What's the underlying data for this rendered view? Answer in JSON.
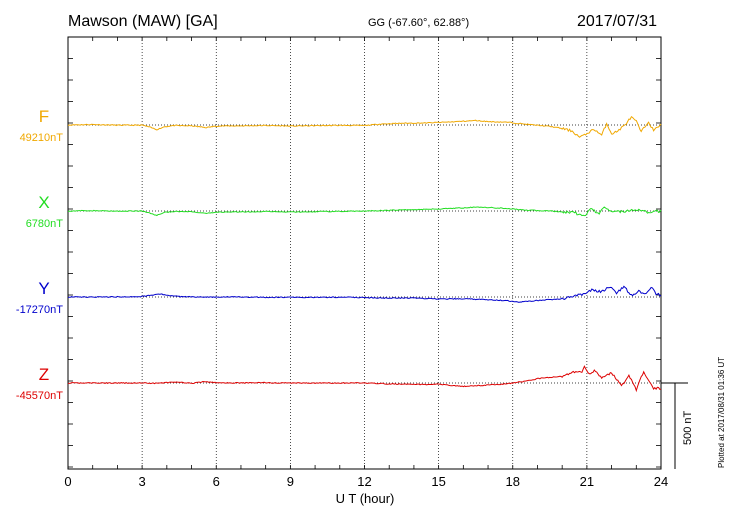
{
  "header": {
    "station": "Mawson (MAW)  [GA]",
    "coords": "GG (-67.60°,  62.88°)",
    "date": "2017/07/31"
  },
  "footer_note": "Plotted at 2017/08/31 01:36 UT",
  "chart_data": {
    "type": "line",
    "title": "Mawson (MAW)  [GA]",
    "xlabel": "U T (hour)",
    "xlim": [
      0,
      24
    ],
    "xticks": [
      "0",
      "3",
      "6",
      "9",
      "12",
      "15",
      "18",
      "21",
      "24"
    ],
    "scale_bar": "500 nT",
    "scale_bar_nT": 500,
    "grid": "dotted vertical lines every 3 hours",
    "series": [
      {
        "name": "F",
        "baseline_label": "49210nT",
        "baseline_nT": 49210,
        "color": "#f0a800",
        "x": [
          0,
          1,
          2,
          3,
          3.3,
          3.6,
          3.9,
          4.3,
          5,
          5.6,
          6,
          7,
          8,
          9,
          10,
          11,
          12,
          12.7,
          13.5,
          14.5,
          15.5,
          16.5,
          17,
          17.8,
          18.5,
          19.5,
          20,
          20.4,
          20.7,
          20.9,
          21.1,
          21.3,
          21.6,
          21.8,
          22,
          22.2,
          22.5,
          22.8,
          23,
          23.2,
          23.5,
          23.7,
          24
        ],
        "y": [
          0,
          3,
          -1,
          -1,
          -12,
          -27,
          -10,
          -3,
          -5,
          -15,
          -6,
          -5,
          -3,
          -6,
          -4,
          -2,
          -3,
          6,
          10,
          12,
          18,
          26,
          20,
          16,
          5,
          -8,
          -20,
          -35,
          -70,
          -60,
          -40,
          -25,
          -60,
          10,
          -50,
          -40,
          -5,
          45,
          20,
          -40,
          20,
          -35,
          8
        ]
      },
      {
        "name": "X",
        "baseline_label": "6780nT",
        "baseline_nT": 6780,
        "color": "#22dd22",
        "x": [
          0,
          1,
          2,
          3,
          3.3,
          3.6,
          3.9,
          4.3,
          5,
          5.6,
          6,
          7,
          8,
          9,
          10,
          11,
          12,
          13,
          14,
          15,
          16,
          16.5,
          17,
          17.8,
          18.5,
          19.5,
          20.5,
          20.9,
          21.2,
          21.5,
          21.7,
          22,
          22.5,
          23,
          23.5,
          24
        ],
        "y": [
          0,
          2,
          -1,
          0,
          -12,
          -25,
          -8,
          -3,
          -5,
          -15,
          -6,
          -5,
          -3,
          -6,
          -4,
          -2,
          0,
          4,
          8,
          12,
          18,
          22,
          20,
          15,
          5,
          0,
          -10,
          -30,
          15,
          -20,
          30,
          -5,
          -2,
          10,
          -8,
          0
        ]
      },
      {
        "name": "Y",
        "baseline_label": "-17270nT",
        "baseline_nT": -17270,
        "color": "#0000cc",
        "x": [
          0,
          1,
          2,
          3,
          3.3,
          3.7,
          4.1,
          4.6,
          5.5,
          6,
          7,
          8,
          9,
          10,
          11,
          12,
          13,
          14,
          15,
          16,
          17,
          17.8,
          18.3,
          19,
          20,
          20.5,
          20.9,
          21.2,
          21.6,
          21.9,
          22.2,
          22.5,
          22.8,
          23.1,
          23.4,
          23.6,
          23.8,
          24
        ],
        "y": [
          0,
          0,
          1,
          3,
          8,
          18,
          8,
          2,
          0,
          0,
          0,
          -2,
          -1,
          -2,
          -1,
          -4,
          -6,
          -6,
          -12,
          -10,
          -16,
          -22,
          -30,
          -20,
          -10,
          5,
          20,
          40,
          30,
          60,
          25,
          60,
          10,
          35,
          15,
          55,
          20,
          10
        ]
      },
      {
        "name": "Z",
        "baseline_label": "-45570nT",
        "baseline_nT": -45570,
        "color": "#dd0000",
        "x": [
          0,
          1,
          2,
          3,
          3.5,
          4.5,
          5,
          5.5,
          6,
          7,
          8,
          9,
          10,
          11,
          12,
          13,
          14,
          15,
          16,
          17,
          17.8,
          18.5,
          19,
          20,
          20.5,
          20.8,
          20.9,
          21.1,
          21.3,
          21.6,
          22,
          22.4,
          22.7,
          23,
          23.3,
          23.5,
          23.7,
          24
        ],
        "y": [
          0,
          0,
          0,
          0,
          -2,
          5,
          -2,
          8,
          2,
          0,
          2,
          0,
          0,
          0,
          0,
          -5,
          -8,
          -8,
          -20,
          -12,
          -4,
          10,
          25,
          40,
          65,
          60,
          100,
          50,
          70,
          35,
          60,
          -20,
          45,
          -40,
          70,
          10,
          -30,
          -30
        ]
      }
    ]
  }
}
